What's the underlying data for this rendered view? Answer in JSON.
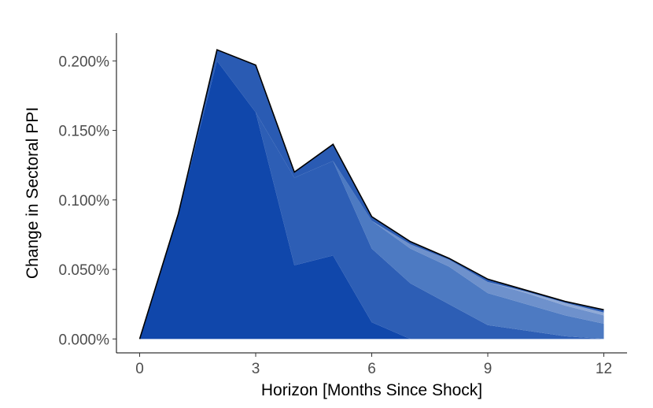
{
  "chart_data": {
    "type": "area",
    "stacked": true,
    "xlabel": "Horizon [Months Since Shock]",
    "ylabel": "Change in Sectoral PPI",
    "xlim": [
      -0.6,
      12.6
    ],
    "ylim": [
      -0.0001,
      0.0022
    ],
    "x_ticks": [
      0,
      3,
      6,
      9,
      12
    ],
    "y_ticks": [
      0,
      0.0005,
      0.001,
      0.0015,
      0.002
    ],
    "y_tick_labels": [
      "0.000%",
      "0.050%",
      "0.100%",
      "0.150%",
      "0.200%"
    ],
    "grid": false,
    "legend": "none",
    "x": [
      0,
      1,
      2,
      3,
      4,
      5,
      6,
      7,
      8,
      9,
      10,
      11,
      12
    ],
    "total_line_color": "#000000",
    "series": [
      {
        "color": "#1047ab",
        "values": [
          0,
          0.0009,
          0.002,
          0.00163,
          0.00053,
          0.0006,
          0.00012,
          0,
          0,
          0,
          0,
          0,
          0
        ]
      },
      {
        "color": "#2d5eb5",
        "values": [
          0,
          0,
          0,
          0,
          0.00063,
          0.00068,
          0.00053,
          0.0004,
          0.00025,
          0.0001,
          6e-05,
          2e-05,
          0
        ]
      },
      {
        "color": "#4d7ac2",
        "values": [
          0,
          0,
          0,
          0,
          0,
          0,
          0.0002,
          0.00025,
          0.00027,
          0.00023,
          0.00019,
          0.00015,
          0.00011
        ]
      },
      {
        "color": "#6e91cc",
        "values": [
          0,
          0,
          0,
          0,
          0,
          0,
          0,
          3e-05,
          5e-05,
          8e-05,
          8e-05,
          7e-05,
          6e-05
        ]
      },
      {
        "color": "#8fa9d6",
        "values": [
          0,
          0,
          0,
          0,
          0,
          0,
          0,
          0,
          0,
          0,
          1e-05,
          2e-05,
          2e-05
        ]
      },
      {
        "color": "#2a5bb3",
        "values": [
          0,
          0,
          8e-05,
          0.00034,
          4e-05,
          0.00012,
          3e-05,
          2e-05,
          1e-05,
          2e-05,
          1e-05,
          1e-05,
          2e-05
        ]
      }
    ]
  }
}
